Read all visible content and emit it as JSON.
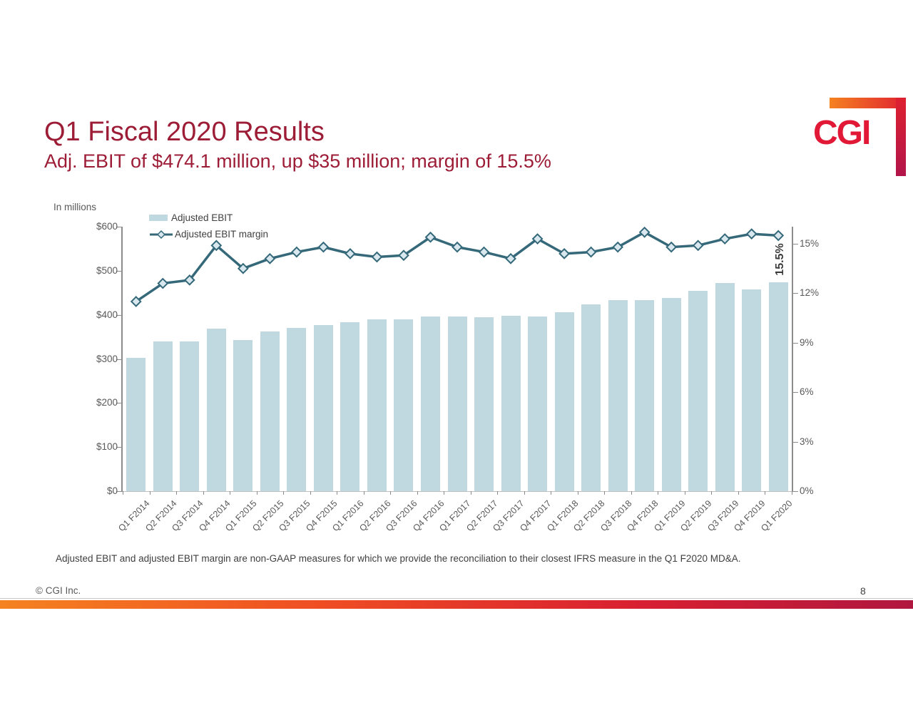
{
  "slide": {
    "title": "Q1 Fiscal 2020 Results",
    "subtitle": "Adj. EBIT of $474.1 million, up $35 million; margin of 15.5%",
    "units_label": "In millions",
    "footnote": "Adjusted EBIT and adjusted EBIT margin are non-GAAP measures for which we provide the reconciliation to their closest IFRS measure in the Q1 F2020 MD&A.",
    "copyright": "© CGI Inc.",
    "page_number": "8",
    "logo_text": "CGI"
  },
  "colors": {
    "title_red": "#9D1D37",
    "bar_fill": "#C0D8E0",
    "line_stroke": "#35697A",
    "marker_fill": "#D9E8EE",
    "logo_red": "#E11937",
    "gradient_left": "#F58220",
    "gradient_right": "#B0173F",
    "axis_gray": "#8C8C8C",
    "label_gray": "#595959"
  },
  "chart_data": {
    "type": "bar",
    "title": "",
    "legend": [
      "Adjusted EBIT",
      "Adjusted EBIT margin"
    ],
    "legend_position": "top-left",
    "grid": false,
    "categories": [
      "Q1 F2014",
      "Q2 F2014",
      "Q3 F2014",
      "Q4 F2014",
      "Q1 F2015",
      "Q2 F2015",
      "Q3 F2015",
      "Q4 F2015",
      "Q1 F2016",
      "Q2 F2016",
      "Q3 F2016",
      "Q4 F2016",
      "Q1 F2017",
      "Q2 F2017",
      "Q3 F2017",
      "Q4 F2017",
      "Q1 F2018",
      "Q2 F2018",
      "Q3 F2018",
      "Q4 F2018",
      "Q1 F2019",
      "Q2 F2019",
      "Q3 F2019",
      "Q4 F2019",
      "Q1 F2020"
    ],
    "series": [
      {
        "name": "Adjusted EBIT",
        "type": "bar",
        "axis": "left",
        "units": "$M",
        "values": [
          302,
          340,
          340,
          368,
          343,
          362,
          370,
          377,
          383,
          390,
          389,
          396,
          397,
          394,
          398,
          396,
          406,
          423,
          434,
          434,
          439,
          455,
          472,
          457,
          474
        ]
      },
      {
        "name": "Adjusted EBIT margin",
        "type": "line",
        "axis": "right",
        "units": "%",
        "values": [
          11.5,
          12.6,
          12.8,
          14.9,
          13.5,
          14.1,
          14.5,
          14.8,
          14.4,
          14.2,
          14.3,
          15.4,
          14.8,
          14.5,
          14.1,
          15.3,
          14.4,
          14.5,
          14.8,
          15.7,
          14.8,
          14.9,
          15.3,
          15.6,
          15.5
        ]
      }
    ],
    "left_axis": {
      "min": 0,
      "max": 600,
      "ticks": [
        "$0",
        "$100",
        "$200",
        "$300",
        "$400",
        "$500",
        "$600"
      ]
    },
    "right_axis": {
      "min": 0,
      "max": 15,
      "ticks": [
        "0%",
        "3%",
        "6%",
        "9%",
        "12%",
        "15%"
      ]
    },
    "annotation": "15.5%"
  }
}
